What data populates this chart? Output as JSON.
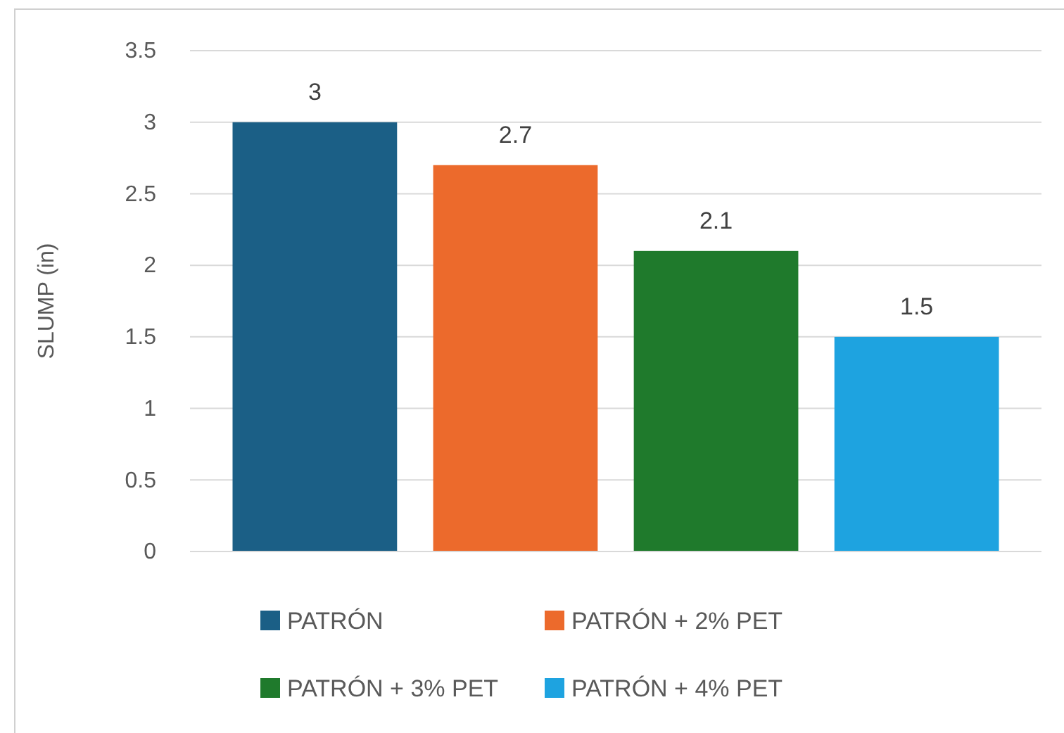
{
  "chart_data": {
    "type": "bar",
    "ylabel": "SLUMP (in)",
    "categories": [
      null
    ],
    "series": [
      {
        "name": "PATRÓN",
        "color": "#1b5f86",
        "values": [
          3
        ]
      },
      {
        "name": "PATRÓN + 2% PET",
        "color": "#ec6a2c",
        "values": [
          2.7
        ]
      },
      {
        "name": "PATRÓN + 3% PET",
        "color": "#1f7a2c",
        "values": [
          2.1
        ]
      },
      {
        "name": "PATRÓN + 4% PET",
        "color": "#1ea3e0",
        "values": [
          1.5
        ]
      }
    ],
    "ylim": [
      0,
      3.5
    ],
    "yticks": [
      0,
      0.5,
      1,
      1.5,
      2,
      2.5,
      3,
      3.5
    ],
    "grid": "y",
    "legend": "bottom",
    "data_labels": true
  }
}
